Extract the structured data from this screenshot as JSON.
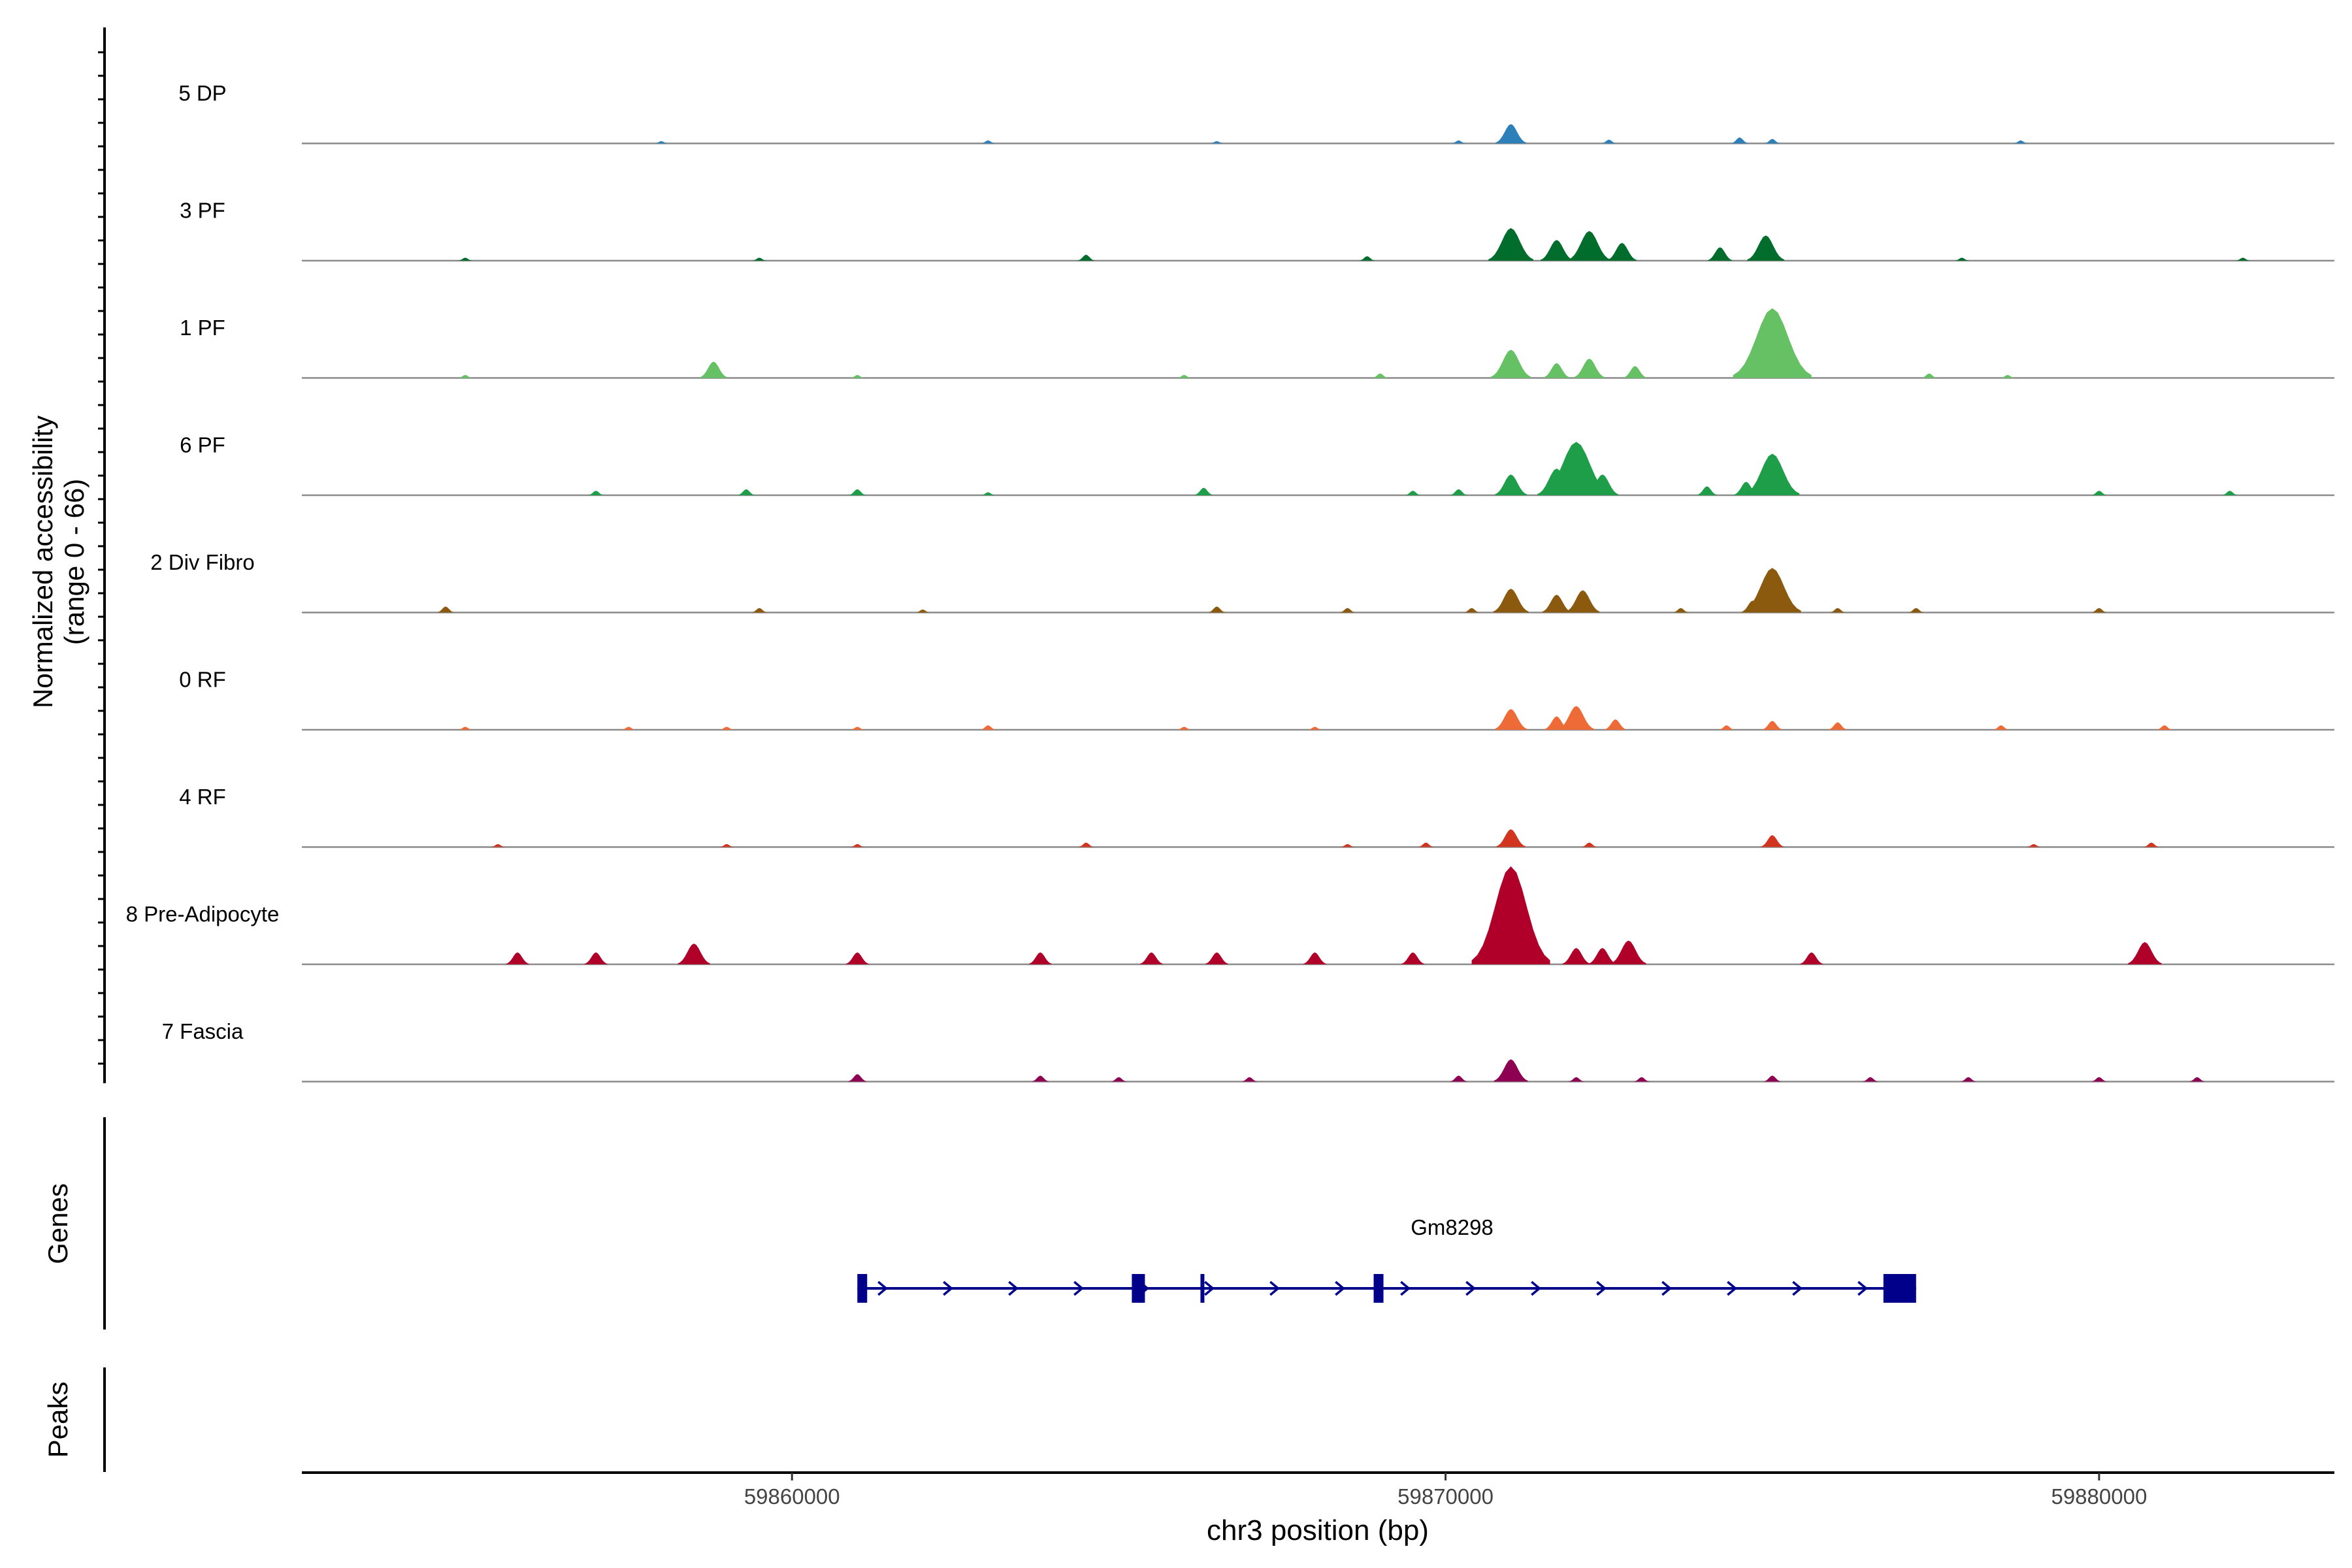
{
  "chart_data": {
    "type": "area",
    "title": "",
    "xlabel": "chr3 position (bp)",
    "ylabel_line1": "Normalized accessibility",
    "ylabel_line2": "(range 0 - 66)",
    "yrange": [
      0,
      66
    ],
    "xrange": [
      59852500,
      59883600
    ],
    "x_ticks": [
      59860000,
      59870000,
      59880000
    ],
    "x_tick_labels": [
      "59860000",
      "59870000",
      "59880000"
    ],
    "genes_label": "Genes",
    "peaks_label": "Peaks",
    "gene": {
      "name": "Gm8298",
      "start": 59861000,
      "end": 59877200,
      "strand": "+",
      "color": "#00008B",
      "exons": [
        [
          59861000,
          59861150
        ],
        [
          59865200,
          59865400
        ],
        [
          59866250,
          59866300
        ],
        [
          59868900,
          59869050
        ],
        [
          59876700,
          59877200
        ]
      ]
    },
    "tracks": [
      {
        "name": "5 DP",
        "color": "#2C7FB8",
        "peaks": [
          [
            59858000,
            1.5
          ],
          [
            59863000,
            2
          ],
          [
            59866500,
            1.5
          ],
          [
            59870200,
            2
          ],
          [
            59871000,
            13
          ],
          [
            59872500,
            2.5
          ],
          [
            59874500,
            4
          ],
          [
            59875000,
            3
          ],
          [
            59878800,
            2
          ]
        ]
      },
      {
        "name": "3 PF",
        "color": "#006D2C",
        "peaks": [
          [
            59855000,
            2
          ],
          [
            59859500,
            2
          ],
          [
            59864500,
            4
          ],
          [
            59868800,
            3
          ],
          [
            59871000,
            22
          ],
          [
            59871700,
            14
          ],
          [
            59872200,
            20
          ],
          [
            59872700,
            12
          ],
          [
            59874200,
            9
          ],
          [
            59874900,
            17
          ],
          [
            59877900,
            2
          ],
          [
            59882200,
            2
          ]
        ]
      },
      {
        "name": "1 PF",
        "color": "#66C164",
        "peaks": [
          [
            59855000,
            2
          ],
          [
            59858800,
            11
          ],
          [
            59861000,
            2
          ],
          [
            59866000,
            2
          ],
          [
            59869000,
            3
          ],
          [
            59871000,
            19
          ],
          [
            59871700,
            10
          ],
          [
            59872200,
            13
          ],
          [
            59872900,
            8
          ],
          [
            59874700,
            15
          ],
          [
            59875000,
            47
          ],
          [
            59877400,
            3
          ],
          [
            59878600,
            2
          ]
        ]
      },
      {
        "name": "6 PF",
        "color": "#1F9E4A",
        "peaks": [
          [
            59857000,
            3
          ],
          [
            59859300,
            4
          ],
          [
            59861000,
            4
          ],
          [
            59863000,
            2
          ],
          [
            59866300,
            5
          ],
          [
            59869500,
            3
          ],
          [
            59870200,
            4
          ],
          [
            59871000,
            14
          ],
          [
            59871700,
            18
          ],
          [
            59872000,
            36
          ],
          [
            59872400,
            14
          ],
          [
            59874000,
            6
          ],
          [
            59874600,
            9
          ],
          [
            59875000,
            28
          ],
          [
            59880000,
            3
          ],
          [
            59882000,
            3
          ]
        ]
      },
      {
        "name": "2 Div Fibro",
        "color": "#8C5A0F",
        "peaks": [
          [
            59854700,
            4
          ],
          [
            59859500,
            3
          ],
          [
            59862000,
            2
          ],
          [
            59866500,
            4
          ],
          [
            59868500,
            3
          ],
          [
            59870400,
            3
          ],
          [
            59871000,
            16
          ],
          [
            59871700,
            12
          ],
          [
            59872100,
            15
          ],
          [
            59873600,
            3
          ],
          [
            59874700,
            8
          ],
          [
            59875000,
            30
          ],
          [
            59876000,
            3
          ],
          [
            59877200,
            3
          ],
          [
            59880000,
            3
          ]
        ]
      },
      {
        "name": "0 RF",
        "color": "#EE6A36",
        "peaks": [
          [
            59855000,
            2
          ],
          [
            59857500,
            2
          ],
          [
            59859000,
            2
          ],
          [
            59861000,
            2
          ],
          [
            59863000,
            3
          ],
          [
            59866000,
            2
          ],
          [
            59868000,
            2
          ],
          [
            59871000,
            14
          ],
          [
            59871700,
            9
          ],
          [
            59872000,
            16
          ],
          [
            59872600,
            7
          ],
          [
            59874300,
            3
          ],
          [
            59875000,
            6
          ],
          [
            59876000,
            5
          ],
          [
            59878500,
            3
          ],
          [
            59881000,
            3
          ]
        ]
      },
      {
        "name": "4 RF",
        "color": "#D1351F",
        "peaks": [
          [
            59855500,
            2
          ],
          [
            59859000,
            2
          ],
          [
            59861000,
            2
          ],
          [
            59864500,
            3
          ],
          [
            59868500,
            2
          ],
          [
            59869700,
            3
          ],
          [
            59871000,
            12
          ],
          [
            59872200,
            3
          ],
          [
            59875000,
            8
          ],
          [
            59879000,
            2
          ],
          [
            59880800,
            3
          ]
        ]
      },
      {
        "name": "8 Pre-Adipocyte",
        "color": "#B0002A",
        "peaks": [
          [
            59855800,
            8
          ],
          [
            59857000,
            8
          ],
          [
            59858500,
            14
          ],
          [
            59861000,
            8
          ],
          [
            59863800,
            8
          ],
          [
            59865500,
            8
          ],
          [
            59866500,
            8
          ],
          [
            59868000,
            8
          ],
          [
            59869500,
            8
          ],
          [
            59871000,
            66
          ],
          [
            59871200,
            7
          ],
          [
            59872000,
            11
          ],
          [
            59872400,
            11
          ],
          [
            59872800,
            16
          ],
          [
            59875600,
            8
          ],
          [
            59880700,
            15
          ]
        ]
      },
      {
        "name": "7 Fascia",
        "color": "#8E0152",
        "peaks": [
          [
            59861000,
            5
          ],
          [
            59863800,
            4
          ],
          [
            59865000,
            3
          ],
          [
            59867000,
            3
          ],
          [
            59870200,
            4
          ],
          [
            59871000,
            15
          ],
          [
            59872000,
            3
          ],
          [
            59873000,
            3
          ],
          [
            59875000,
            4
          ],
          [
            59876500,
            3
          ],
          [
            59878000,
            3
          ],
          [
            59880000,
            3
          ],
          [
            59881500,
            3
          ]
        ]
      }
    ]
  }
}
